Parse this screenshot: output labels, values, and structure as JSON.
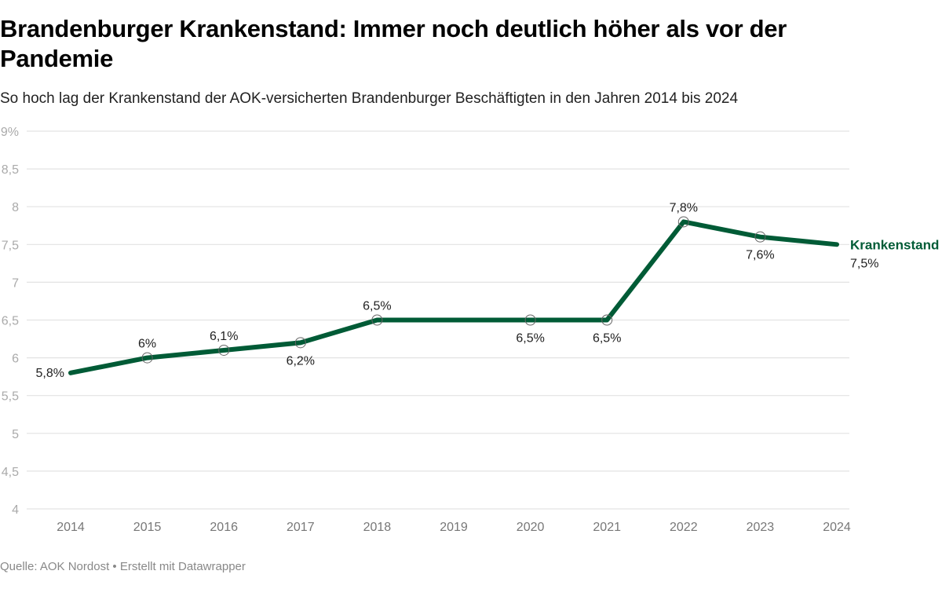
{
  "header": {
    "title": "Brandenburger Krankenstand: Immer noch deutlich höher als vor der Pandemie",
    "subtitle": "So hoch lag der Krankenstand der AOK-versicherten Brandenburger Beschäftigten in den Jahren 2014 bis 2024"
  },
  "footer": {
    "source": "Quelle: AOK Nordost • Erstellt mit Datawrapper"
  },
  "chart_data": {
    "type": "line",
    "title": "Brandenburger Krankenstand: Immer noch deutlich höher als vor der Pandemie",
    "subtitle": "So hoch lag der Krankenstand der AOK-versicherten Brandenburger Beschäftigten in den Jahren 2014 bis 2024",
    "xlabel": "",
    "ylabel": "",
    "x": [
      2014,
      2015,
      2016,
      2017,
      2018,
      2019,
      2020,
      2021,
      2022,
      2023,
      2024
    ],
    "ylim": [
      4,
      9
    ],
    "yticks": [
      4,
      4.5,
      5,
      5.5,
      6,
      6.5,
      7,
      7.5,
      8,
      8.5,
      9
    ],
    "ytick_labels": [
      "4",
      "4,5",
      "5",
      "5,5",
      "6",
      "6,5",
      "7",
      "7,5",
      "8",
      "8,5",
      "9%"
    ],
    "grid": true,
    "color": "#005b36",
    "series": [
      {
        "name": "Krankenstand",
        "values": [
          5.8,
          6.0,
          6.1,
          6.2,
          6.5,
          6.5,
          6.5,
          6.5,
          7.8,
          7.6,
          7.5
        ],
        "labels": [
          "5,8%",
          "6%",
          "6,1%",
          "6,2%",
          "6,5%",
          null,
          "6,5%",
          "6,5%",
          "7,8%",
          "7,6%",
          "7,5%"
        ],
        "label_pos": [
          "left",
          "above",
          "above",
          "below",
          "above",
          null,
          "below",
          "below",
          "above",
          "below",
          "end"
        ]
      }
    ],
    "source": "Quelle: AOK Nordost • Erstellt mit Datawrapper"
  }
}
